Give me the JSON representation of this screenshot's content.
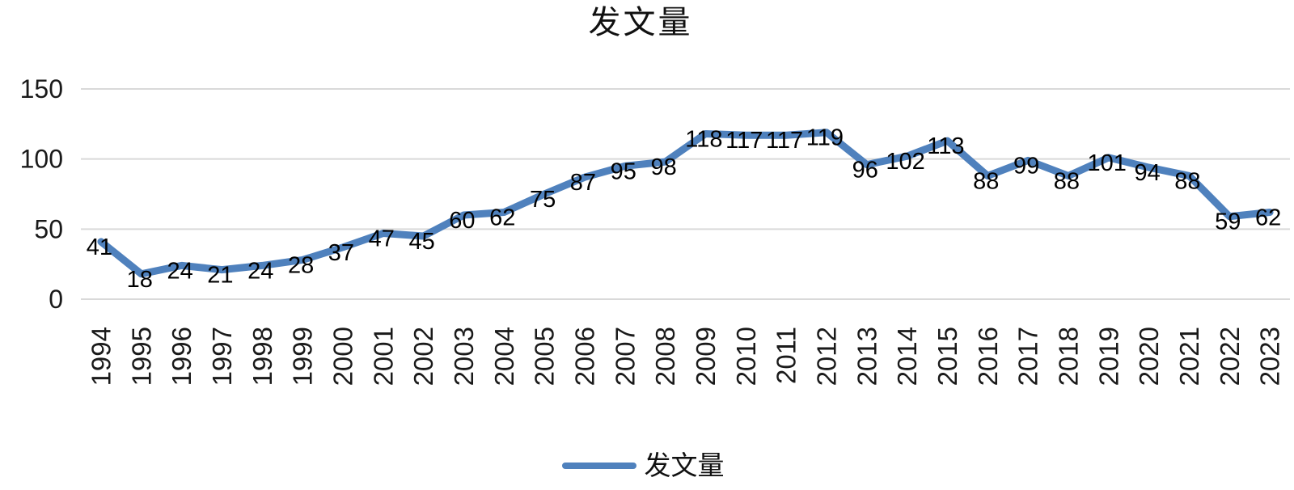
{
  "chart_data": {
    "type": "line",
    "title": "发文量",
    "categories": [
      "1994",
      "1995",
      "1996",
      "1997",
      "1998",
      "1999",
      "2000",
      "2001",
      "2002",
      "2003",
      "2004",
      "2005",
      "2006",
      "2007",
      "2008",
      "2009",
      "2010",
      "2011",
      "2012",
      "2013",
      "2014",
      "2015",
      "2016",
      "2017",
      "2018",
      "2019",
      "2020",
      "2021",
      "2022",
      "2023"
    ],
    "series": [
      {
        "name": "发文量",
        "values": [
          41,
          18,
          24,
          21,
          24,
          28,
          37,
          47,
          45,
          60,
          62,
          75,
          87,
          95,
          98,
          118,
          117,
          117,
          119,
          96,
          102,
          113,
          88,
          99,
          88,
          101,
          94,
          88,
          59,
          62
        ]
      }
    ],
    "xlabel": "",
    "ylabel": "",
    "ylim": [
      0,
      150
    ],
    "yticks": [
      0,
      50,
      100,
      150
    ],
    "grid": true,
    "data_labels": true,
    "legend_position": "bottom",
    "colors": {
      "series": "#4F81BD",
      "grid": "#D9D9D9",
      "axis_text": "#1a1a1a",
      "label_text": "#000000",
      "background": "#FFFFFF"
    }
  }
}
